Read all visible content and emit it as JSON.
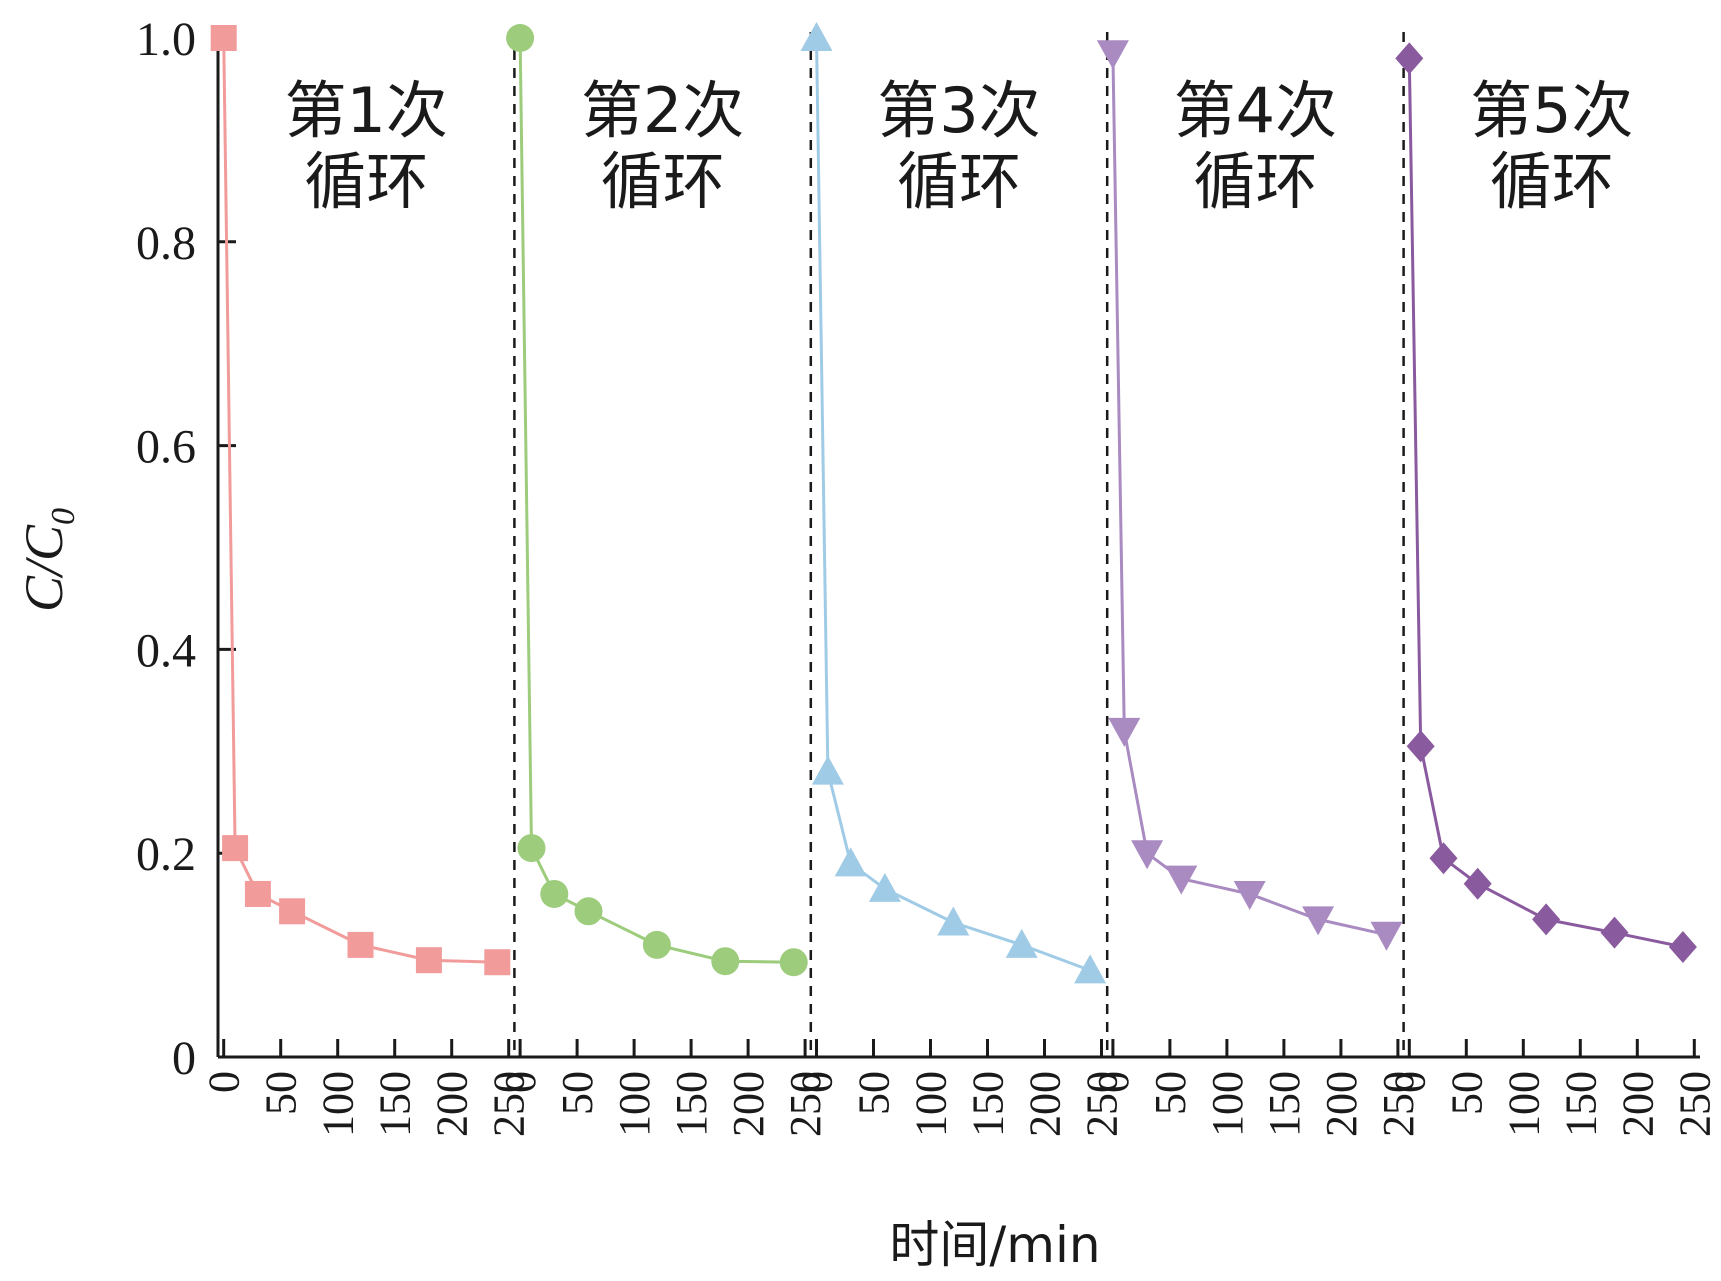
{
  "chart_data": {
    "type": "line",
    "title": "",
    "xlabel": "时间/min",
    "ylabel": "C/C",
    "ylabel_subscript": "0",
    "ylim": [
      0,
      1.0
    ],
    "y_ticks": [
      "0",
      "0.2",
      "0.4",
      "0.6",
      "0.8",
      "1.0"
    ],
    "x_ticks": [
      "0",
      "50",
      "100",
      "150",
      "200",
      "250"
    ],
    "panel_xlim": [
      -5,
      255
    ],
    "grid": false,
    "panels": [
      {
        "label_line1": "第1次",
        "label_line2": "循环",
        "color": "#f29b9b",
        "marker": "square",
        "x": [
          0,
          10,
          30,
          60,
          120,
          180,
          240
        ],
        "y": [
          1.0,
          0.205,
          0.16,
          0.143,
          0.11,
          0.095,
          0.093
        ]
      },
      {
        "label_line1": "第2次",
        "label_line2": "循环",
        "color": "#9ccc7c",
        "marker": "circle",
        "x": [
          0,
          10,
          30,
          60,
          120,
          180,
          240
        ],
        "y": [
          1.0,
          0.205,
          0.16,
          0.143,
          0.11,
          0.094,
          0.093
        ]
      },
      {
        "label_line1": "第3次",
        "label_line2": "循环",
        "color": "#9fcbe6",
        "marker": "triangle-up",
        "x": [
          0,
          10,
          30,
          60,
          120,
          180,
          240
        ],
        "y": [
          1.0,
          0.28,
          0.19,
          0.165,
          0.132,
          0.11,
          0.085
        ]
      },
      {
        "label_line1": "第4次",
        "label_line2": "循环",
        "color": "#a98bc2",
        "marker": "triangle-down",
        "x": [
          0,
          10,
          30,
          60,
          120,
          180,
          240
        ],
        "y": [
          0.985,
          0.32,
          0.2,
          0.175,
          0.16,
          0.135,
          0.12
        ]
      },
      {
        "label_line1": "第5次",
        "label_line2": "循环",
        "color": "#8a5a9e",
        "marker": "diamond",
        "x": [
          0,
          10,
          30,
          60,
          120,
          180,
          240
        ],
        "y": [
          0.98,
          0.305,
          0.195,
          0.17,
          0.135,
          0.122,
          0.108
        ]
      }
    ]
  }
}
